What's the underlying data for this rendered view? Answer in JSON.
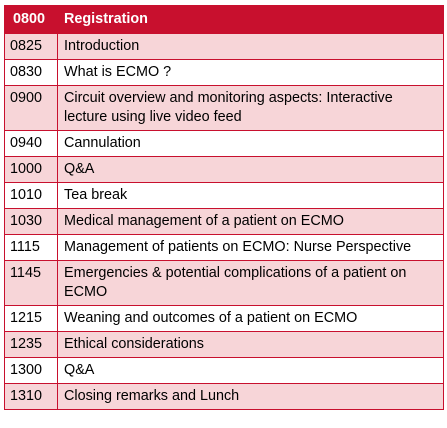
{
  "header": {
    "time": "0800",
    "item": "Registration"
  },
  "rows": [
    {
      "time": "0825",
      "item": "Introduction",
      "shaded": true
    },
    {
      "time": "0830",
      "item": "What is ECMO ?",
      "shaded": false
    },
    {
      "time": "0900",
      "item": "Circuit overview and monitoring aspects: Interactive lecture using live video feed",
      "shaded": true
    },
    {
      "time": "0940",
      "item": "Cannulation",
      "shaded": false
    },
    {
      "time": "1000",
      "item": "Q&A",
      "shaded": true
    },
    {
      "time": "1010",
      "item": "Tea break",
      "shaded": false
    },
    {
      "time": "1030",
      "item": "Medical management of a patient on ECMO",
      "shaded": true
    },
    {
      "time": "1115",
      "item": "Management of patients on ECMO: Nurse Perspective",
      "shaded": false
    },
    {
      "time": "1145",
      "item": "Emergencies & potential complications of a patient on ECMO",
      "shaded": true
    },
    {
      "time": "1215",
      "item": "Weaning and outcomes of a patient on ECMO",
      "shaded": false
    },
    {
      "time": "1235",
      "item": "Ethical considerations",
      "shaded": true
    },
    {
      "time": "1300",
      "item": "Q&A",
      "shaded": false
    },
    {
      "time": "1310",
      "item": "Closing remarks and Lunch",
      "shaded": true
    }
  ],
  "colors": {
    "header_background": "#c8102e",
    "header_text": "#ffffff",
    "row_shaded": "#f7d5d8",
    "border": "#c8102e"
  }
}
